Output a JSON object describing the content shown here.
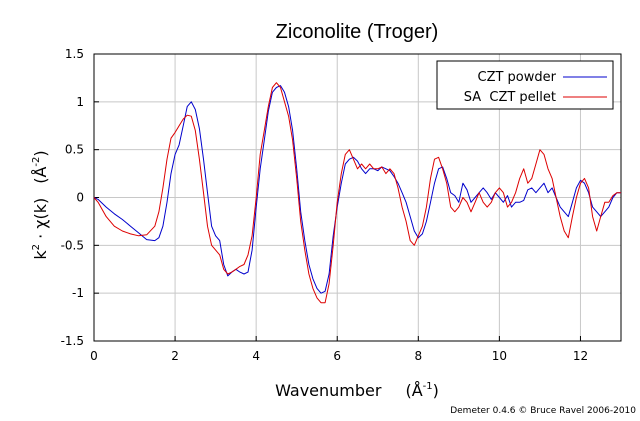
{
  "chart_data": {
    "type": "line",
    "title": "Ziconolite (Troger)",
    "xlabel": "Wavenumber",
    "xlabel_unit": "Å",
    "xlabel_unit_sup": "-1",
    "ylabel": "k",
    "ylabel_sup": "2",
    "ylabel_mid": " · χ(k)",
    "ylabel_unit": "Å",
    "ylabel_unit_sup": "-2",
    "xlim": [
      0,
      13
    ],
    "ylim": [
      -1.5,
      1.5
    ],
    "xticks": [
      0,
      2,
      4,
      6,
      8,
      10,
      12
    ],
    "xtick_labels": [
      "0",
      "2",
      "4",
      "6",
      "8",
      "10",
      "12"
    ],
    "yticks": [
      -1.5,
      -1,
      -0.5,
      0,
      0.5,
      1,
      1.5
    ],
    "ytick_labels": [
      "-1.5",
      "-1",
      "-0.5",
      "0",
      "0.5",
      "1",
      "1.5"
    ],
    "grid": true,
    "legend_position": "top-right",
    "credit": "Demeter 0.4.6 © Bruce Ravel 2006-2010",
    "series": [
      {
        "name": "CZT powder",
        "color": "#0000cc",
        "x": [
          0,
          0.1,
          0.3,
          0.5,
          0.7,
          0.9,
          1.1,
          1.3,
          1.5,
          1.6,
          1.7,
          1.8,
          1.9,
          2.0,
          2.1,
          2.2,
          2.3,
          2.4,
          2.5,
          2.6,
          2.7,
          2.8,
          2.9,
          3.0,
          3.1,
          3.2,
          3.3,
          3.4,
          3.5,
          3.6,
          3.7,
          3.8,
          3.9,
          4.0,
          4.1,
          4.2,
          4.3,
          4.4,
          4.5,
          4.6,
          4.7,
          4.8,
          4.9,
          5.0,
          5.1,
          5.2,
          5.3,
          5.4,
          5.5,
          5.6,
          5.7,
          5.8,
          5.9,
          6.0,
          6.1,
          6.2,
          6.3,
          6.4,
          6.5,
          6.6,
          6.7,
          6.8,
          6.9,
          7.0,
          7.1,
          7.2,
          7.3,
          7.4,
          7.5,
          7.6,
          7.7,
          7.8,
          7.9,
          8.0,
          8.1,
          8.2,
          8.3,
          8.4,
          8.5,
          8.6,
          8.7,
          8.8,
          8.9,
          9.0,
          9.1,
          9.2,
          9.3,
          9.4,
          9.5,
          9.6,
          9.7,
          9.8,
          9.9,
          10.0,
          10.1,
          10.2,
          10.3,
          10.4,
          10.5,
          10.6,
          10.7,
          10.8,
          10.9,
          11.0,
          11.1,
          11.2,
          11.3,
          11.4,
          11.5,
          11.6,
          11.7,
          11.8,
          11.9,
          12.0,
          12.1,
          12.2,
          12.3,
          12.4,
          12.5,
          12.6,
          12.7,
          12.8,
          12.9,
          13.0
        ],
        "y": [
          0,
          -0.02,
          -0.1,
          -0.17,
          -0.23,
          -0.3,
          -0.37,
          -0.44,
          -0.45,
          -0.42,
          -0.3,
          -0.05,
          0.25,
          0.45,
          0.55,
          0.75,
          0.95,
          1.0,
          0.92,
          0.72,
          0.4,
          0.05,
          -0.3,
          -0.4,
          -0.45,
          -0.7,
          -0.82,
          -0.78,
          -0.75,
          -0.78,
          -0.8,
          -0.78,
          -0.55,
          -0.1,
          0.3,
          0.6,
          0.9,
          1.1,
          1.15,
          1.17,
          1.1,
          0.95,
          0.7,
          0.3,
          -0.15,
          -0.45,
          -0.7,
          -0.85,
          -0.95,
          -1.0,
          -0.98,
          -0.8,
          -0.4,
          -0.1,
          0.15,
          0.35,
          0.4,
          0.42,
          0.38,
          0.3,
          0.25,
          0.3,
          0.3,
          0.28,
          0.32,
          0.3,
          0.28,
          0.22,
          0.15,
          0.05,
          -0.05,
          -0.2,
          -0.35,
          -0.42,
          -0.38,
          -0.25,
          -0.05,
          0.15,
          0.3,
          0.32,
          0.2,
          0.05,
          0.02,
          -0.05,
          0.15,
          0.08,
          -0.05,
          0.0,
          0.05,
          0.1,
          0.05,
          -0.02,
          0.05,
          0.0,
          -0.05,
          0.02,
          -0.1,
          -0.05,
          -0.05,
          -0.03,
          0.08,
          0.1,
          0.05,
          0.1,
          0.15,
          0.05,
          0.1,
          0.0,
          -0.1,
          -0.15,
          -0.2,
          -0.05,
          0.1,
          0.18,
          0.15,
          0.05,
          -0.1,
          -0.15,
          -0.2,
          -0.15,
          -0.1,
          0.0,
          0.05,
          0.05
        ]
      },
      {
        "name": "SA  CZT pellet",
        "color": "#dd0000",
        "x": [
          0,
          0.1,
          0.3,
          0.5,
          0.7,
          0.9,
          1.1,
          1.3,
          1.5,
          1.6,
          1.7,
          1.8,
          1.9,
          2.0,
          2.1,
          2.2,
          2.3,
          2.4,
          2.5,
          2.6,
          2.7,
          2.8,
          2.9,
          3.0,
          3.1,
          3.2,
          3.3,
          3.4,
          3.5,
          3.6,
          3.7,
          3.8,
          3.9,
          4.0,
          4.1,
          4.2,
          4.3,
          4.4,
          4.5,
          4.6,
          4.7,
          4.8,
          4.9,
          5.0,
          5.1,
          5.2,
          5.3,
          5.4,
          5.5,
          5.6,
          5.7,
          5.8,
          5.9,
          6.0,
          6.1,
          6.2,
          6.3,
          6.4,
          6.5,
          6.6,
          6.7,
          6.8,
          6.9,
          7.0,
          7.1,
          7.2,
          7.3,
          7.4,
          7.5,
          7.6,
          7.7,
          7.8,
          7.9,
          8.0,
          8.1,
          8.2,
          8.3,
          8.4,
          8.5,
          8.6,
          8.7,
          8.8,
          8.9,
          9.0,
          9.1,
          9.2,
          9.3,
          9.4,
          9.5,
          9.6,
          9.7,
          9.8,
          9.9,
          10.0,
          10.1,
          10.2,
          10.3,
          10.4,
          10.5,
          10.6,
          10.7,
          10.8,
          10.9,
          11.0,
          11.1,
          11.2,
          11.3,
          11.4,
          11.5,
          11.6,
          11.7,
          11.8,
          11.9,
          12.0,
          12.1,
          12.2,
          12.3,
          12.4,
          12.5,
          12.6,
          12.7,
          12.8,
          12.9,
          13.0
        ],
        "y": [
          0,
          -0.05,
          -0.2,
          -0.3,
          -0.35,
          -0.38,
          -0.4,
          -0.39,
          -0.3,
          -0.15,
          0.1,
          0.4,
          0.62,
          0.68,
          0.75,
          0.82,
          0.86,
          0.85,
          0.7,
          0.4,
          0.05,
          -0.3,
          -0.5,
          -0.55,
          -0.6,
          -0.75,
          -0.8,
          -0.78,
          -0.75,
          -0.72,
          -0.7,
          -0.6,
          -0.4,
          0.0,
          0.45,
          0.7,
          0.95,
          1.15,
          1.2,
          1.15,
          1.0,
          0.85,
          0.6,
          0.2,
          -0.25,
          -0.55,
          -0.8,
          -0.95,
          -1.05,
          -1.1,
          -1.1,
          -0.9,
          -0.5,
          -0.05,
          0.25,
          0.45,
          0.5,
          0.4,
          0.3,
          0.35,
          0.3,
          0.35,
          0.3,
          0.3,
          0.32,
          0.25,
          0.3,
          0.25,
          0.1,
          -0.1,
          -0.25,
          -0.45,
          -0.5,
          -0.4,
          -0.3,
          -0.1,
          0.2,
          0.4,
          0.42,
          0.3,
          0.15,
          -0.1,
          -0.15,
          -0.1,
          0.0,
          -0.05,
          -0.15,
          -0.05,
          0.05,
          -0.05,
          -0.1,
          -0.05,
          0.05,
          0.1,
          0.05,
          -0.1,
          -0.05,
          0.05,
          0.2,
          0.3,
          0.15,
          0.2,
          0.35,
          0.5,
          0.45,
          0.3,
          0.2,
          0.0,
          -0.2,
          -0.35,
          -0.42,
          -0.2,
          0.0,
          0.15,
          0.2,
          0.1,
          -0.2,
          -0.35,
          -0.2,
          -0.05,
          -0.05,
          0.02,
          0.05,
          0.05
        ]
      }
    ]
  }
}
